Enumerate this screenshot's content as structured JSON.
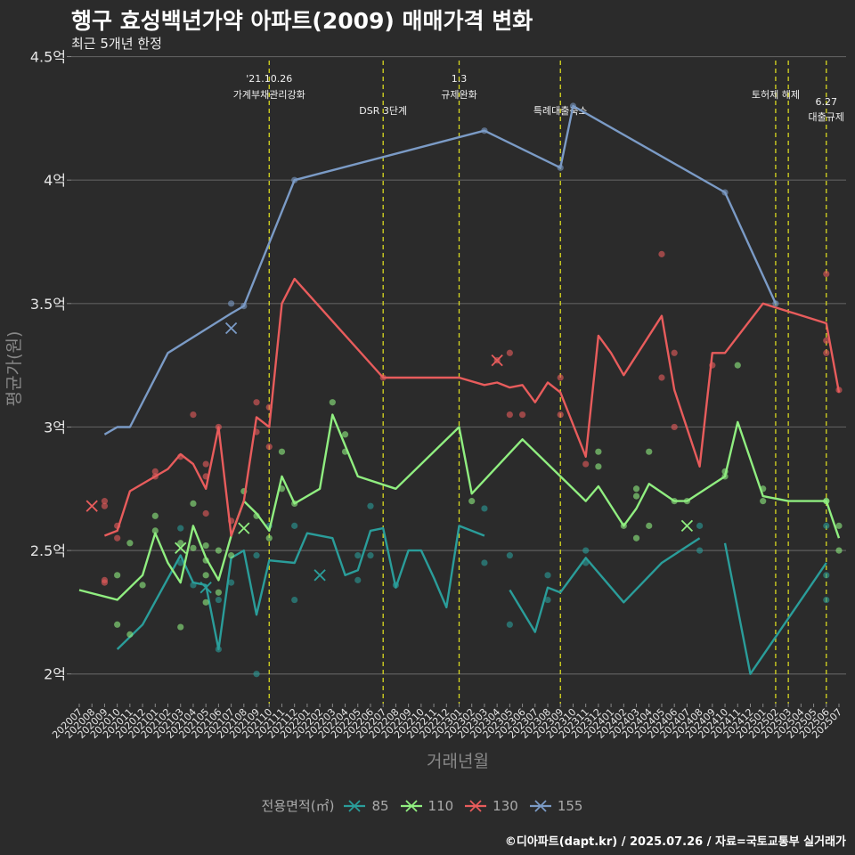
{
  "chart_data": {
    "type": "line",
    "title": "행구 효성백년가약 아파트(2009) 매매가격 변화",
    "subtitle": "최근 5개년 한정",
    "xlabel": "거래년월",
    "ylabel": "평균가(원)",
    "caption": "©디아파트(dapt.kr) / 2025.07.26 / 자료=국토교통부 실거래가",
    "legend_title": "전용면적(㎡)",
    "legend_position": "bottom",
    "ylim": [
      1.88,
      4.52
    ],
    "yticks": [
      2,
      2.5,
      3,
      3.5,
      4,
      4.5
    ],
    "ytick_labels": [
      "2억",
      "2.5억",
      "3억",
      "3.5억",
      "4억",
      "4.5억"
    ],
    "categories": [
      "202007",
      "202008",
      "202009",
      "202010",
      "202011",
      "202012",
      "202101",
      "202102",
      "202103",
      "202104",
      "202105",
      "202106",
      "202107",
      "202108",
      "202109",
      "202110",
      "202111",
      "202112",
      "202201",
      "202202",
      "202203",
      "202204",
      "202205",
      "202206",
      "202207",
      "202208",
      "202209",
      "202210",
      "202211",
      "202212",
      "202301",
      "202302",
      "202303",
      "202304",
      "202305",
      "202306",
      "202307",
      "202308",
      "202309",
      "202310",
      "202311",
      "202312",
      "202401",
      "202402",
      "202403",
      "202404",
      "202405",
      "202406",
      "202407",
      "202408",
      "202409",
      "202410",
      "202411",
      "202412",
      "202501",
      "202502",
      "202503",
      "202504",
      "202505",
      "202506",
      "202507"
    ],
    "events": [
      {
        "x": 15.0,
        "line1": "'21.10.26",
        "line2": "가계부채관리강화",
        "row": 0
      },
      {
        "x": 24.0,
        "line1": "",
        "line2": "DSR 3단계",
        "row": 1
      },
      {
        "x": 30.0,
        "line1": "1.3",
        "line2": "규제완화",
        "row": 0
      },
      {
        "x": 38.0,
        "line1": "",
        "line2": "특례대출축소",
        "row": 1
      },
      {
        "x": 55.0,
        "line1": "",
        "line2": "토허제 해제",
        "row": 0
      },
      {
        "x": 56.0,
        "line1": "",
        "line2": "",
        "row": 0
      },
      {
        "x": 59.0,
        "line1": "6.27",
        "line2": "대출규제",
        "row": 2
      }
    ],
    "series": [
      {
        "name": "85",
        "color": "#2a9d9a",
        "line": [
          [
            3,
            2.1
          ],
          [
            5,
            2.2
          ],
          [
            8,
            2.48
          ],
          [
            9,
            2.37
          ],
          [
            10,
            2.36
          ],
          [
            11,
            2.1
          ],
          [
            12,
            2.47
          ],
          [
            13,
            2.5
          ],
          [
            14,
            2.24
          ],
          [
            15,
            2.46
          ],
          [
            17,
            2.45
          ],
          [
            18,
            2.57
          ],
          [
            20,
            2.55
          ],
          [
            21,
            2.4
          ],
          [
            22,
            2.42
          ],
          [
            23,
            2.58
          ],
          [
            24,
            2.59
          ],
          [
            25,
            2.35
          ],
          [
            26,
            2.5
          ],
          [
            27,
            2.5
          ],
          [
            28,
            2.39
          ],
          [
            29,
            2.27
          ],
          [
            30,
            2.6
          ],
          [
            32,
            2.56
          ],
          null,
          [
            34,
            2.34
          ],
          [
            36,
            2.17
          ],
          [
            37,
            2.35
          ],
          [
            38,
            2.33
          ],
          [
            40,
            2.47
          ],
          [
            43,
            2.29
          ],
          [
            46,
            2.45
          ],
          [
            49,
            2.55
          ],
          null,
          [
            51,
            2.53
          ],
          [
            53,
            2.0
          ],
          [
            59,
            2.45
          ]
        ],
        "points": [
          [
            8,
            2.59
          ],
          [
            8,
            2.45
          ],
          [
            9,
            2.36
          ],
          [
            11,
            2.1
          ],
          [
            11,
            2.3
          ],
          [
            12,
            2.37
          ],
          [
            14,
            2.48
          ],
          [
            14,
            2.0
          ],
          [
            15,
            2.6
          ],
          [
            17,
            2.3
          ],
          [
            17,
            2.6
          ],
          [
            22,
            2.48
          ],
          [
            22,
            2.38
          ],
          [
            23,
            2.48
          ],
          [
            23,
            2.68
          ],
          [
            25,
            2.36
          ],
          [
            32,
            2.45
          ],
          [
            32,
            2.67
          ],
          [
            34,
            2.48
          ],
          [
            34,
            2.2
          ],
          [
            37,
            2.4
          ],
          [
            37,
            2.3
          ],
          [
            40,
            2.5
          ],
          [
            40,
            2.45
          ],
          [
            49,
            2.5
          ],
          [
            49,
            2.6
          ],
          [
            59,
            2.3
          ],
          [
            59,
            2.4
          ],
          [
            59,
            2.6
          ]
        ],
        "crosses": [
          [
            10,
            2.35
          ],
          [
            19,
            2.4
          ]
        ]
      },
      {
        "name": "110",
        "color": "#90ee80",
        "line": [
          [
            0,
            2.34
          ],
          [
            3,
            2.3
          ],
          [
            4,
            2.35
          ],
          [
            5,
            2.4
          ],
          [
            6,
            2.57
          ],
          [
            7,
            2.45
          ],
          [
            8,
            2.37
          ],
          [
            9,
            2.6
          ],
          [
            10,
            2.47
          ],
          [
            11,
            2.38
          ],
          [
            12,
            2.56
          ],
          [
            13,
            2.7
          ],
          [
            14,
            2.65
          ],
          [
            15,
            2.58
          ],
          [
            16,
            2.8
          ],
          [
            17,
            2.69
          ],
          [
            19,
            2.75
          ],
          [
            20,
            3.05
          ],
          [
            22,
            2.8
          ],
          [
            25,
            2.75
          ],
          [
            30,
            3.0
          ],
          [
            31,
            2.73
          ],
          [
            35,
            2.95
          ],
          [
            40,
            2.7
          ],
          [
            41,
            2.76
          ],
          [
            43,
            2.6
          ],
          [
            44,
            2.67
          ],
          [
            45,
            2.77
          ],
          [
            47,
            2.7
          ],
          [
            48,
            2.7
          ],
          [
            51,
            2.8
          ],
          [
            52,
            3.02
          ],
          [
            54,
            2.72
          ],
          [
            56,
            2.7
          ],
          [
            58,
            2.7
          ],
          [
            59,
            2.7
          ],
          [
            60,
            2.55
          ]
        ],
        "points": [
          [
            3,
            2.4
          ],
          [
            3,
            2.2
          ],
          [
            4,
            2.16
          ],
          [
            4,
            2.53
          ],
          [
            5,
            2.36
          ],
          [
            6,
            2.64
          ],
          [
            6,
            2.58
          ],
          [
            8,
            2.19
          ],
          [
            8,
            2.53
          ],
          [
            9,
            2.69
          ],
          [
            9,
            2.51
          ],
          [
            10,
            2.52
          ],
          [
            10,
            2.46
          ],
          [
            10,
            2.29
          ],
          [
            10,
            2.4
          ],
          [
            11,
            2.33
          ],
          [
            11,
            2.5
          ],
          [
            12,
            2.48
          ],
          [
            13,
            2.74
          ],
          [
            14,
            2.64
          ],
          [
            15,
            2.55
          ],
          [
            16,
            2.75
          ],
          [
            16,
            2.9
          ],
          [
            17,
            2.69
          ],
          [
            20,
            3.1
          ],
          [
            21,
            2.97
          ],
          [
            21,
            2.9
          ],
          [
            31,
            2.7
          ],
          [
            41,
            2.84
          ],
          [
            41,
            2.9
          ],
          [
            43,
            2.6
          ],
          [
            44,
            2.72
          ],
          [
            44,
            2.55
          ],
          [
            44,
            2.75
          ],
          [
            45,
            2.9
          ],
          [
            45,
            2.6
          ],
          [
            47,
            2.7
          ],
          [
            48,
            2.7
          ],
          [
            51,
            2.82
          ],
          [
            51,
            2.8
          ],
          [
            52,
            3.25
          ],
          [
            54,
            2.75
          ],
          [
            54,
            2.7
          ],
          [
            59,
            2.7
          ],
          [
            59,
            2.7
          ],
          [
            60,
            2.5
          ],
          [
            60,
            2.6
          ]
        ],
        "crosses": [
          [
            8,
            2.51
          ],
          [
            13,
            2.59
          ],
          [
            48,
            2.6
          ]
        ]
      },
      {
        "name": "130",
        "color": "#e85c5c",
        "line": [
          [
            2,
            2.56
          ],
          [
            3,
            2.58
          ],
          [
            4,
            2.74
          ],
          [
            6,
            2.8
          ],
          [
            7,
            2.83
          ],
          [
            8,
            2.89
          ],
          [
            9,
            2.85
          ],
          [
            10,
            2.75
          ],
          [
            11,
            3.0
          ],
          [
            12,
            2.56
          ],
          [
            13,
            2.7
          ],
          [
            14,
            3.04
          ],
          [
            15,
            3.0
          ],
          [
            16,
            3.5
          ],
          [
            17,
            3.6
          ],
          [
            24,
            3.2
          ],
          [
            30,
            3.2
          ],
          [
            32,
            3.17
          ],
          [
            33,
            3.18
          ],
          [
            34,
            3.16
          ],
          [
            35,
            3.17
          ],
          [
            36,
            3.1
          ],
          [
            37,
            3.18
          ],
          [
            38,
            3.14
          ],
          [
            40,
            2.88
          ],
          [
            41,
            3.37
          ],
          [
            42,
            3.3
          ],
          [
            43,
            3.21
          ],
          [
            46,
            3.45
          ],
          [
            47,
            3.15
          ],
          [
            49,
            2.84
          ],
          [
            50,
            3.3
          ],
          [
            51,
            3.3
          ],
          [
            54,
            3.5
          ],
          [
            59,
            3.42
          ],
          [
            60,
            3.14
          ]
        ],
        "points": [
          [
            2,
            2.7
          ],
          [
            2,
            2.68
          ],
          [
            2,
            2.37
          ],
          [
            2,
            2.38
          ],
          [
            3,
            2.6
          ],
          [
            3,
            2.55
          ],
          [
            6,
            2.82
          ],
          [
            6,
            2.8
          ],
          [
            8,
            2.88
          ],
          [
            9,
            3.05
          ],
          [
            10,
            2.85
          ],
          [
            10,
            2.8
          ],
          [
            10,
            2.65
          ],
          [
            11,
            3.0
          ],
          [
            12,
            2.62
          ],
          [
            14,
            3.1
          ],
          [
            14,
            2.98
          ],
          [
            15,
            2.92
          ],
          [
            15,
            3.08
          ],
          [
            24,
            3.2
          ],
          [
            33,
            3.27
          ],
          [
            34,
            3.05
          ],
          [
            34,
            3.3
          ],
          [
            35,
            3.05
          ],
          [
            38,
            3.2
          ],
          [
            38,
            3.05
          ],
          [
            40,
            2.85
          ],
          [
            46,
            3.7
          ],
          [
            46,
            3.2
          ],
          [
            47,
            3.3
          ],
          [
            47,
            3.0
          ],
          [
            50,
            3.25
          ],
          [
            59,
            3.62
          ],
          [
            59,
            3.3
          ],
          [
            59,
            3.35
          ],
          [
            60,
            3.15
          ]
        ],
        "crosses": [
          [
            1,
            2.68
          ],
          [
            33,
            3.27
          ]
        ]
      },
      {
        "name": "155",
        "color": "#7b9bc6",
        "line": [
          [
            2,
            2.97
          ],
          [
            3,
            3.0
          ],
          [
            4,
            3.0
          ],
          [
            7,
            3.3
          ],
          [
            12,
            3.46
          ],
          [
            13,
            3.49
          ],
          [
            17,
            4.0
          ],
          [
            32,
            4.2
          ],
          [
            38,
            4.05
          ],
          [
            39,
            4.3
          ],
          [
            51,
            3.95
          ],
          [
            55,
            3.5
          ]
        ],
        "points": [
          [
            12,
            3.5
          ],
          [
            13,
            3.49
          ],
          [
            17,
            4.0
          ],
          [
            32,
            4.2
          ],
          [
            38,
            4.05
          ],
          [
            39,
            4.3
          ],
          [
            51,
            3.95
          ],
          [
            55,
            3.5
          ]
        ],
        "crosses": [
          [
            12,
            3.4
          ]
        ]
      }
    ]
  }
}
